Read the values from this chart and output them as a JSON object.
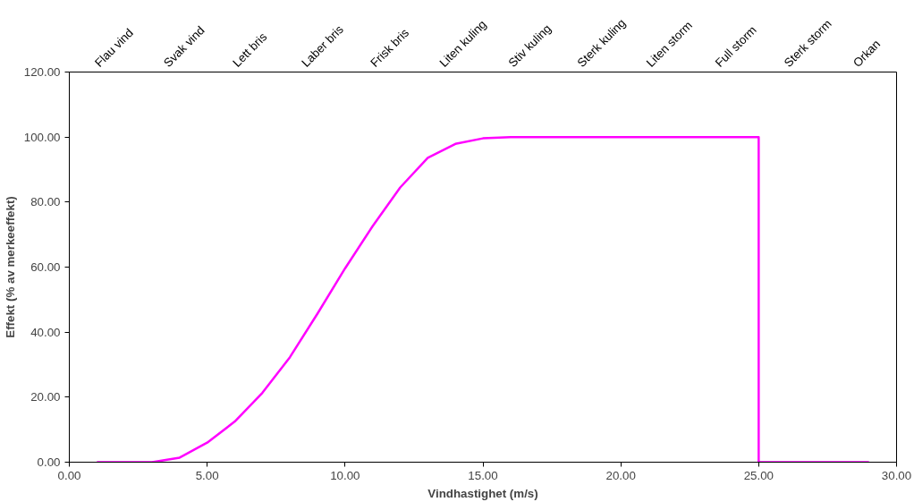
{
  "chart_data": {
    "type": "line",
    "xlabel": "Vindhastighet (m/s)",
    "ylabel": "Effekt (% av merkeeffekt)",
    "x": [
      1,
      2,
      3,
      4,
      5,
      6,
      7,
      8,
      9,
      10,
      11,
      12,
      13,
      14,
      15,
      16,
      17,
      18,
      19,
      20,
      21,
      22,
      23,
      24,
      25,
      25,
      26,
      27,
      28,
      29
    ],
    "series": [
      {
        "color": "#ff00ff",
        "values": [
          0,
          0,
          0,
          1.4,
          6.0,
          12.5,
          21.3,
          32.3,
          45.7,
          59.6,
          72.6,
          84.5,
          93.6,
          97.9,
          99.6,
          100,
          100,
          100,
          100,
          100,
          100,
          100,
          100,
          100,
          100,
          0,
          0,
          0,
          0,
          0
        ]
      }
    ],
    "xlim": [
      0,
      30
    ],
    "ylim": [
      0,
      120
    ],
    "xticks": [
      {
        "value": 0,
        "label": "0.00"
      },
      {
        "value": 5,
        "label": "5.00"
      },
      {
        "value": 10,
        "label": "10.00"
      },
      {
        "value": 15,
        "label": "15.00"
      },
      {
        "value": 20,
        "label": "20.00"
      },
      {
        "value": 25,
        "label": "25.00"
      },
      {
        "value": 30,
        "label": "30.00"
      }
    ],
    "yticks": [
      {
        "value": 0,
        "label": "0.00"
      },
      {
        "value": 20,
        "label": "20.00"
      },
      {
        "value": 40,
        "label": "40.00"
      },
      {
        "value": 60,
        "label": "60.00"
      },
      {
        "value": 80,
        "label": "80.00"
      },
      {
        "value": 100,
        "label": "100.00"
      },
      {
        "value": 120,
        "label": "120.00"
      }
    ],
    "annotations": [
      "Flau vind",
      "Svak vind",
      "Lett bris",
      "Laber bris",
      "Frisk bris",
      "Liten kuling",
      "Stiv kuling",
      "Sterk kuling",
      "Liten storm",
      "Full storm",
      "Sterk storm",
      "Orkan"
    ],
    "grid": false,
    "marker": "none",
    "line_style": "solid"
  }
}
